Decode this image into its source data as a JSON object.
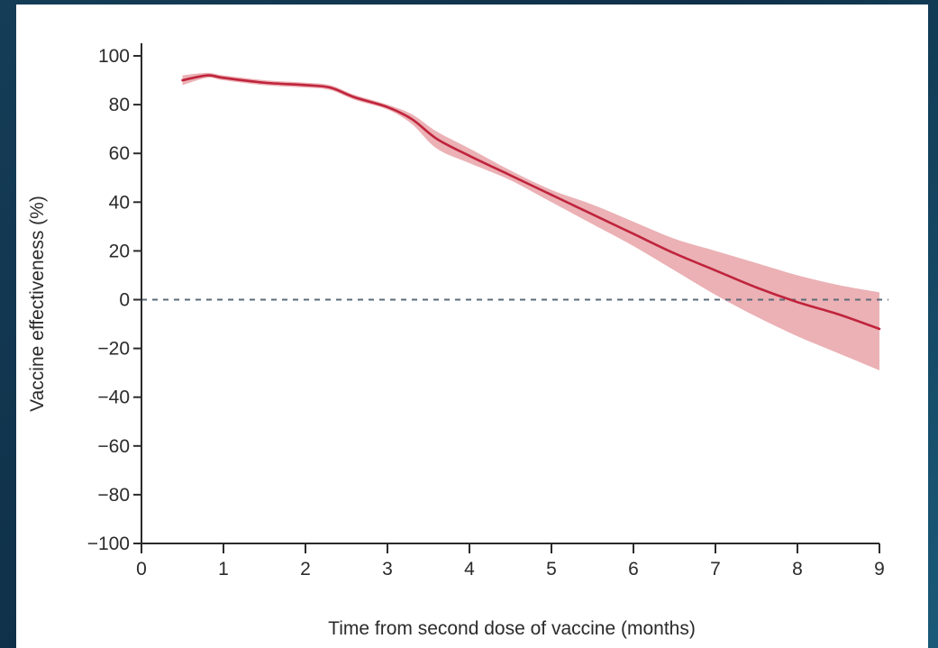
{
  "chart_data": {
    "type": "line",
    "xlabel": "Time from second dose of vaccine (months)",
    "ylabel": "Vaccine effectiveness (%)",
    "xlim": [
      0,
      9
    ],
    "ylim": [
      -100,
      100
    ],
    "x_ticks": [
      0,
      1,
      2,
      3,
      4,
      5,
      6,
      7,
      8,
      9
    ],
    "y_ticks": [
      100,
      80,
      60,
      40,
      20,
      0,
      -20,
      -40,
      -60,
      -80,
      -100
    ],
    "x_tick_labels": [
      "0",
      "1",
      "2",
      "3",
      "4",
      "5",
      "6",
      "7",
      "8",
      "9"
    ],
    "y_tick_labels": [
      "100",
      "80",
      "60",
      "40",
      "20",
      "0",
      "−20",
      "−40",
      "−60",
      "−80",
      "−100"
    ],
    "reference_line": {
      "y": 0,
      "style": "dashed"
    },
    "grid": false,
    "legend": false,
    "colors": {
      "line": "#c0243c",
      "band": "#e8a3a8",
      "reference": "#5a6b78"
    },
    "series": [
      {
        "x": [
          0.5,
          0.8,
          1.0,
          1.5,
          2.0,
          2.3,
          2.6,
          3.0,
          3.3,
          3.6,
          4.0,
          4.5,
          5.0,
          5.5,
          6.0,
          6.5,
          7.0,
          7.5,
          8.0,
          8.5,
          9.0
        ],
        "y": [
          90,
          92,
          91,
          89,
          88,
          87,
          83,
          79,
          74,
          66,
          59,
          51,
          43,
          35,
          27,
          19,
          12,
          5,
          -1,
          -6,
          -12
        ],
        "lower": [
          88,
          91,
          90,
          88,
          87,
          86,
          82,
          78,
          72,
          62,
          56,
          49,
          40,
          31,
          22,
          12,
          2,
          -7,
          -15,
          -22,
          -29
        ],
        "upper": [
          92,
          93,
          92,
          90,
          89,
          88,
          84,
          80,
          76,
          69,
          62,
          53,
          45,
          39,
          32,
          25,
          20,
          15,
          10,
          6,
          3
        ]
      }
    ]
  }
}
